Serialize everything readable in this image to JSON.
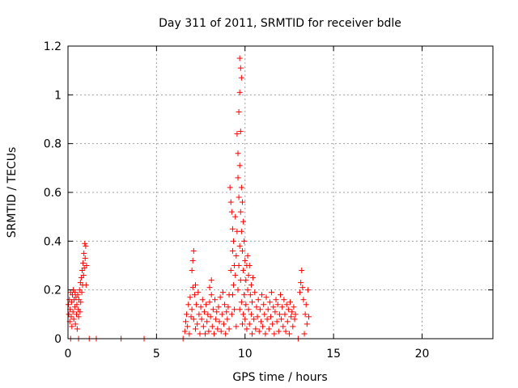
{
  "chart_data": {
    "type": "scatter",
    "title": "Day 311 of 2011, SRMTID for receiver bdle",
    "xlabel": "GPS time / hours",
    "ylabel": "SRMTID / TECUs",
    "xlim": [
      0,
      24
    ],
    "ylim": [
      0,
      1.2
    ],
    "x_ticks": [
      0,
      5,
      10,
      15,
      20
    ],
    "x_tick_labels": [
      "0",
      "5",
      "10",
      "15",
      "20"
    ],
    "y_ticks": [
      0,
      0.2,
      0.4,
      0.6,
      0.8,
      1.0,
      1.2
    ],
    "y_tick_labels": [
      "0",
      "0.2",
      "0.4",
      "0.6",
      "0.8",
      "1",
      "1.2"
    ],
    "grid": true,
    "marker_color": "#ff0000",
    "series": [
      {
        "name": "SRMTID",
        "marker": "+",
        "points": [
          [
            0.02,
            0.14
          ],
          [
            0.05,
            0.1
          ],
          [
            0.08,
            0.16
          ],
          [
            0.1,
            0.07
          ],
          [
            0.12,
            0.12
          ],
          [
            0.15,
            0.19
          ],
          [
            0.18,
            0.09
          ],
          [
            0.2,
            0.15
          ],
          [
            0.22,
            0.05
          ],
          [
            0.25,
            0.18
          ],
          [
            0.28,
            0.11
          ],
          [
            0.3,
            0.2
          ],
          [
            0.33,
            0.08
          ],
          [
            0.35,
            0.16
          ],
          [
            0.38,
            0.13
          ],
          [
            0.4,
            0.19
          ],
          [
            0.42,
            0.06
          ],
          [
            0.45,
            0.17
          ],
          [
            0.48,
            0.1
          ],
          [
            0.5,
            0.14
          ],
          [
            0.52,
            0.04
          ],
          [
            0.55,
            0.18
          ],
          [
            0.58,
            0.12
          ],
          [
            0.6,
            0.09
          ],
          [
            0.62,
            0.16
          ],
          [
            0.65,
            0.2
          ],
          [
            0.68,
            0.11
          ],
          [
            0.7,
            0.23
          ],
          [
            0.72,
            0.15
          ],
          [
            0.75,
            0.25
          ],
          [
            0.78,
            0.19
          ],
          [
            0.8,
            0.28
          ],
          [
            0.82,
            0.22
          ],
          [
            0.85,
            0.31
          ],
          [
            0.88,
            0.26
          ],
          [
            0.9,
            0.35
          ],
          [
            0.92,
            0.29
          ],
          [
            0.95,
            0.39
          ],
          [
            0.97,
            0.33
          ],
          [
            1.0,
            0.38
          ],
          [
            1.02,
            0.22
          ],
          [
            1.05,
            0.3
          ],
          [
            0.15,
            0.0
          ],
          [
            0.6,
            0.0
          ],
          [
            1.2,
            0.0
          ],
          [
            1.6,
            0.0
          ],
          [
            3.0,
            0.0
          ],
          [
            4.3,
            0.0
          ],
          [
            6.5,
            0.0
          ],
          [
            6.6,
            0.03
          ],
          [
            6.65,
            0.07
          ],
          [
            6.7,
            0.1
          ],
          [
            6.75,
            0.05
          ],
          [
            6.8,
            0.14
          ],
          [
            6.85,
            0.02
          ],
          [
            6.9,
            0.17
          ],
          [
            6.95,
            0.09
          ],
          [
            7.0,
            0.12
          ],
          [
            7.0,
            0.28
          ],
          [
            7.05,
            0.21
          ],
          [
            7.05,
            0.32
          ],
          [
            7.1,
            0.08
          ],
          [
            7.1,
            0.36
          ],
          [
            7.15,
            0.18
          ],
          [
            7.2,
            0.04
          ],
          [
            7.2,
            0.22
          ],
          [
            7.25,
            0.14
          ],
          [
            7.3,
            0.06
          ],
          [
            7.35,
            0.19
          ],
          [
            7.4,
            0.1
          ],
          [
            7.45,
            0.02
          ],
          [
            7.5,
            0.13
          ],
          [
            7.55,
            0.08
          ],
          [
            7.6,
            0.16
          ],
          [
            7.65,
            0.05
          ],
          [
            7.7,
            0.11
          ],
          [
            7.75,
            0.02
          ],
          [
            7.8,
            0.14
          ],
          [
            7.85,
            0.07
          ],
          [
            7.9,
            0.1
          ],
          [
            7.95,
            0.03
          ],
          [
            8.0,
            0.15
          ],
          [
            8.0,
            0.21
          ],
          [
            8.05,
            0.09
          ],
          [
            8.1,
            0.18
          ],
          [
            8.1,
            0.24
          ],
          [
            8.15,
            0.05
          ],
          [
            8.2,
            0.12
          ],
          [
            8.25,
            0.02
          ],
          [
            8.3,
            0.16
          ],
          [
            8.35,
            0.08
          ],
          [
            8.4,
            0.11
          ],
          [
            8.45,
            0.04
          ],
          [
            8.5,
            0.13
          ],
          [
            8.55,
            0.07
          ],
          [
            8.6,
            0.17
          ],
          [
            8.65,
            0.03
          ],
          [
            8.7,
            0.1
          ],
          [
            8.75,
            0.19
          ],
          [
            8.8,
            0.06
          ],
          [
            8.85,
            0.14
          ],
          [
            8.9,
            0.02
          ],
          [
            8.95,
            0.11
          ],
          [
            9.0,
            0.08
          ],
          [
            9.05,
            0.13
          ],
          [
            9.1,
            0.04
          ],
          [
            9.1,
            0.18
          ],
          [
            9.15,
            0.62
          ],
          [
            9.2,
            0.56
          ],
          [
            9.2,
            0.28
          ],
          [
            9.25,
            0.52
          ],
          [
            9.25,
            0.1
          ],
          [
            9.3,
            0.45
          ],
          [
            9.3,
            0.36
          ],
          [
            9.3,
            0.18
          ],
          [
            9.35,
            0.22
          ],
          [
            9.35,
            0.4
          ],
          [
            9.4,
            0.3
          ],
          [
            9.4,
            0.12
          ],
          [
            9.45,
            0.5
          ],
          [
            9.45,
            0.26
          ],
          [
            9.5,
            0.34
          ],
          [
            9.5,
            0.05
          ],
          [
            9.55,
            0.84
          ],
          [
            9.55,
            0.44
          ],
          [
            9.6,
            0.76
          ],
          [
            9.6,
            0.66
          ],
          [
            9.6,
            0.2
          ],
          [
            9.65,
            0.93
          ],
          [
            9.65,
            0.58
          ],
          [
            9.65,
            0.3
          ],
          [
            9.7,
            1.15
          ],
          [
            9.7,
            1.01
          ],
          [
            9.7,
            0.71
          ],
          [
            9.7,
            0.38
          ],
          [
            9.7,
            0.12
          ],
          [
            9.75,
            1.11
          ],
          [
            9.75,
            0.85
          ],
          [
            9.75,
            0.52
          ],
          [
            9.75,
            0.24
          ],
          [
            9.8,
            1.07
          ],
          [
            9.8,
            0.62
          ],
          [
            9.8,
            0.44
          ],
          [
            9.8,
            0.15
          ],
          [
            9.85,
            0.56
          ],
          [
            9.85,
            0.36
          ],
          [
            9.85,
            0.06
          ],
          [
            9.9,
            0.48
          ],
          [
            9.9,
            0.28
          ],
          [
            9.9,
            0.1
          ],
          [
            9.95,
            0.4
          ],
          [
            9.95,
            0.18
          ],
          [
            10.0,
            0.32
          ],
          [
            10.0,
            0.08
          ],
          [
            10.05,
            0.24
          ],
          [
            10.05,
            0.14
          ],
          [
            10.1,
            0.3
          ],
          [
            10.1,
            0.04
          ],
          [
            10.15,
            0.2
          ],
          [
            10.15,
            0.34
          ],
          [
            10.2,
            0.12
          ],
          [
            10.2,
            0.26
          ],
          [
            10.25,
            0.06
          ],
          [
            10.25,
            0.3
          ],
          [
            10.3,
            0.18
          ],
          [
            10.35,
            0.1
          ],
          [
            10.35,
            0.22
          ],
          [
            10.4,
            0.02
          ],
          [
            10.4,
            0.15
          ],
          [
            10.45,
            0.25
          ],
          [
            10.5,
            0.08
          ],
          [
            10.55,
            0.19
          ],
          [
            10.6,
            0.04
          ],
          [
            10.65,
            0.13
          ],
          [
            10.7,
            0.09
          ],
          [
            10.75,
            0.16
          ],
          [
            10.8,
            0.03
          ],
          [
            10.85,
            0.12
          ],
          [
            10.9,
            0.07
          ],
          [
            10.95,
            0.18
          ],
          [
            11.0,
            0.05
          ],
          [
            11.05,
            0.14
          ],
          [
            11.1,
            0.1
          ],
          [
            11.15,
            0.02
          ],
          [
            11.2,
            0.17
          ],
          [
            11.25,
            0.08
          ],
          [
            11.3,
            0.12
          ],
          [
            11.35,
            0.04
          ],
          [
            11.4,
            0.15
          ],
          [
            11.45,
            0.09
          ],
          [
            11.5,
            0.19
          ],
          [
            11.55,
            0.06
          ],
          [
            11.6,
            0.13
          ],
          [
            11.65,
            0.02
          ],
          [
            11.7,
            0.11
          ],
          [
            11.75,
            0.16
          ],
          [
            11.8,
            0.07
          ],
          [
            11.85,
            0.14
          ],
          [
            11.9,
            0.03
          ],
          [
            11.95,
            0.1
          ],
          [
            12.0,
            0.18
          ],
          [
            12.05,
            0.08
          ],
          [
            12.1,
            0.13
          ],
          [
            12.15,
            0.05
          ],
          [
            12.2,
            0.16
          ],
          [
            12.25,
            0.1
          ],
          [
            12.3,
            0.03
          ],
          [
            12.35,
            0.14
          ],
          [
            12.4,
            0.07
          ],
          [
            12.45,
            0.12
          ],
          [
            12.5,
            0.02
          ],
          [
            12.55,
            0.15
          ],
          [
            12.6,
            0.09
          ],
          [
            12.65,
            0.11
          ],
          [
            12.7,
            0.05
          ],
          [
            12.75,
            0.13
          ],
          [
            12.8,
            0.08
          ],
          [
            12.85,
            0.1
          ],
          [
            13.0,
            0.0
          ],
          [
            13.1,
            0.19
          ],
          [
            13.15,
            0.23
          ],
          [
            13.2,
            0.28
          ],
          [
            13.25,
            0.21
          ],
          [
            13.3,
            0.16
          ],
          [
            13.35,
            0.02
          ],
          [
            13.4,
            0.1
          ],
          [
            13.45,
            0.14
          ],
          [
            13.5,
            0.06
          ],
          [
            13.55,
            0.2
          ],
          [
            13.6,
            0.09
          ]
        ]
      }
    ]
  }
}
